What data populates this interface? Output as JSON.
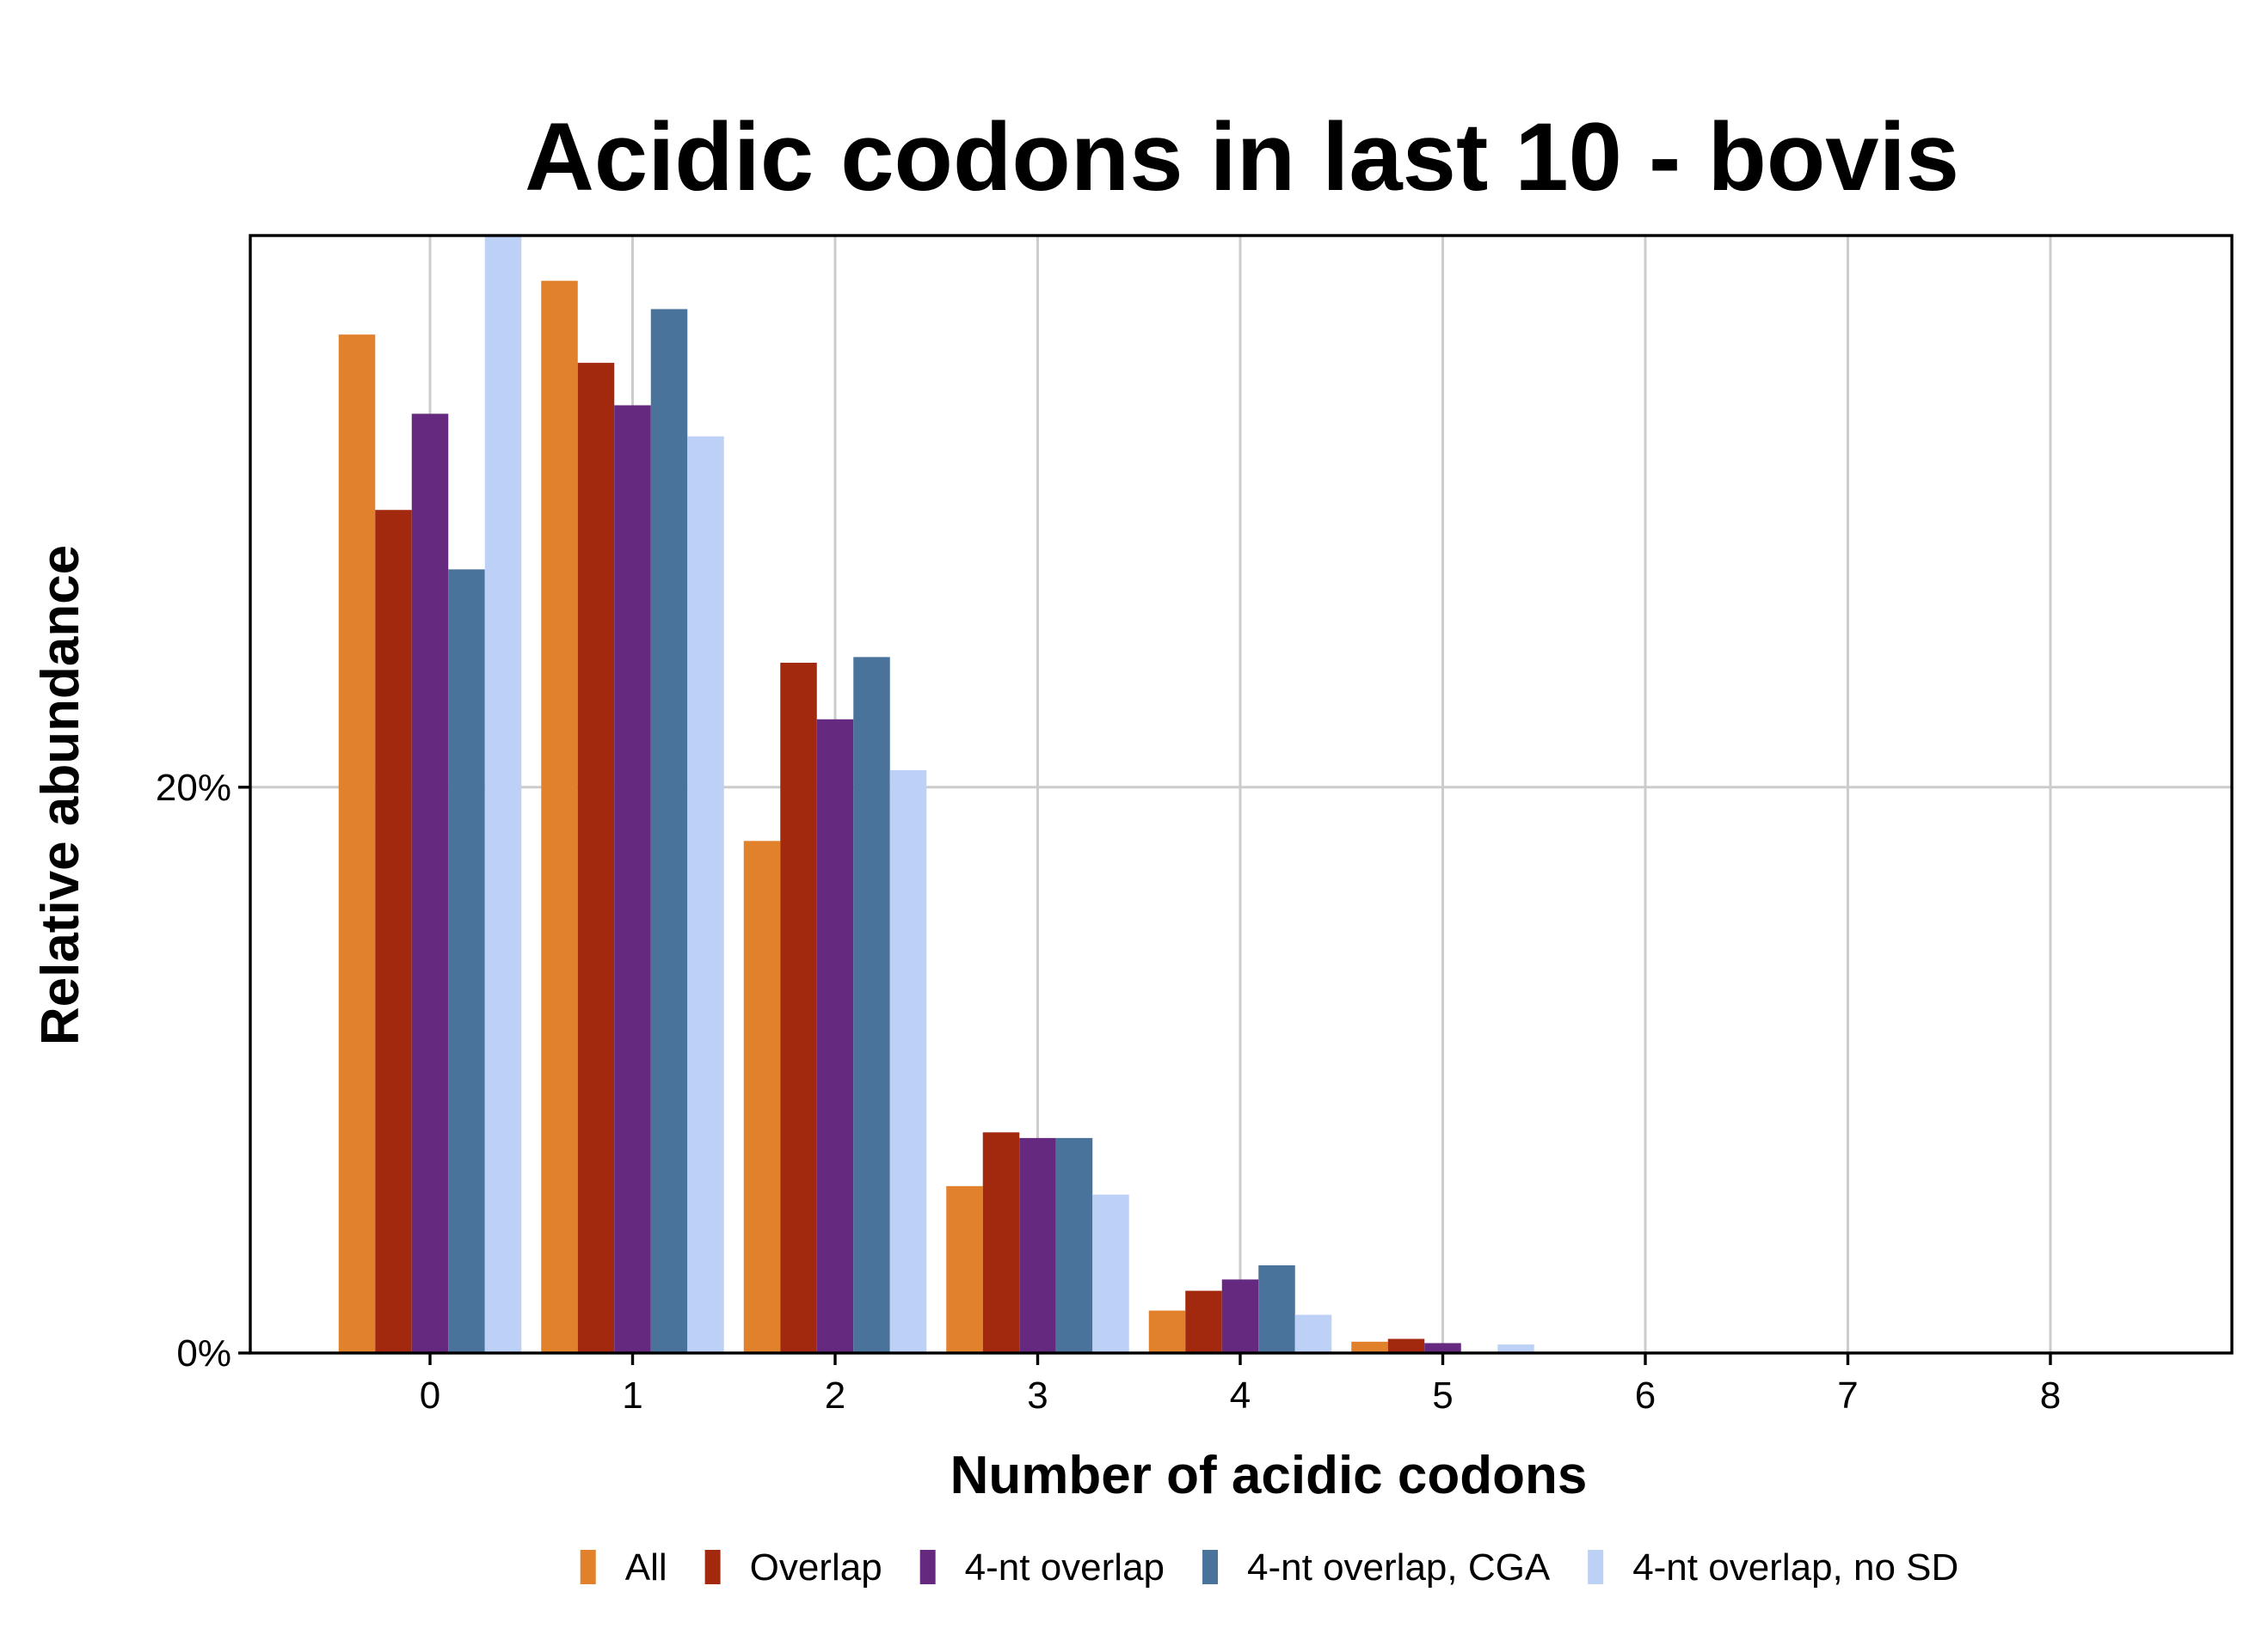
{
  "chart_data": {
    "type": "bar",
    "title": "Acidic codons in last 10 - bovis",
    "xlabel": "Number of acidic codons",
    "ylabel": "Relative abundance",
    "categories": [
      "0",
      "1",
      "2",
      "3",
      "4",
      "5",
      "6",
      "7",
      "8"
    ],
    "y_ticks": [
      {
        "value": 0,
        "label": "0%"
      },
      {
        "value": 20,
        "label": "20%"
      }
    ],
    "ylim": [
      0,
      39.5
    ],
    "y_unit": "percent",
    "grid": true,
    "legend_position": "bottom",
    "series": [
      {
        "name": "All",
        "color": "#E2812C",
        "values": [
          36.0,
          37.9,
          18.1,
          5.9,
          1.5,
          0.4,
          0,
          0,
          0
        ]
      },
      {
        "name": "Overlap",
        "color": "#A2290E",
        "values": [
          29.8,
          35.0,
          24.4,
          7.8,
          2.2,
          0.5,
          0,
          0,
          0
        ]
      },
      {
        "name": "4-nt overlap",
        "color": "#652A80",
        "values": [
          33.2,
          33.5,
          22.4,
          7.6,
          2.6,
          0.35,
          0,
          0,
          0
        ]
      },
      {
        "name": "4-nt overlap, CGA",
        "color": "#4A739B",
        "values": [
          27.7,
          36.9,
          24.6,
          7.6,
          3.1,
          0,
          0,
          0,
          0
        ]
      },
      {
        "name": "4-nt overlap, no SD",
        "color": "#BDD0F6",
        "values": [
          39.5,
          32.4,
          20.6,
          5.6,
          1.35,
          0.3,
          0,
          0,
          0
        ]
      }
    ]
  }
}
